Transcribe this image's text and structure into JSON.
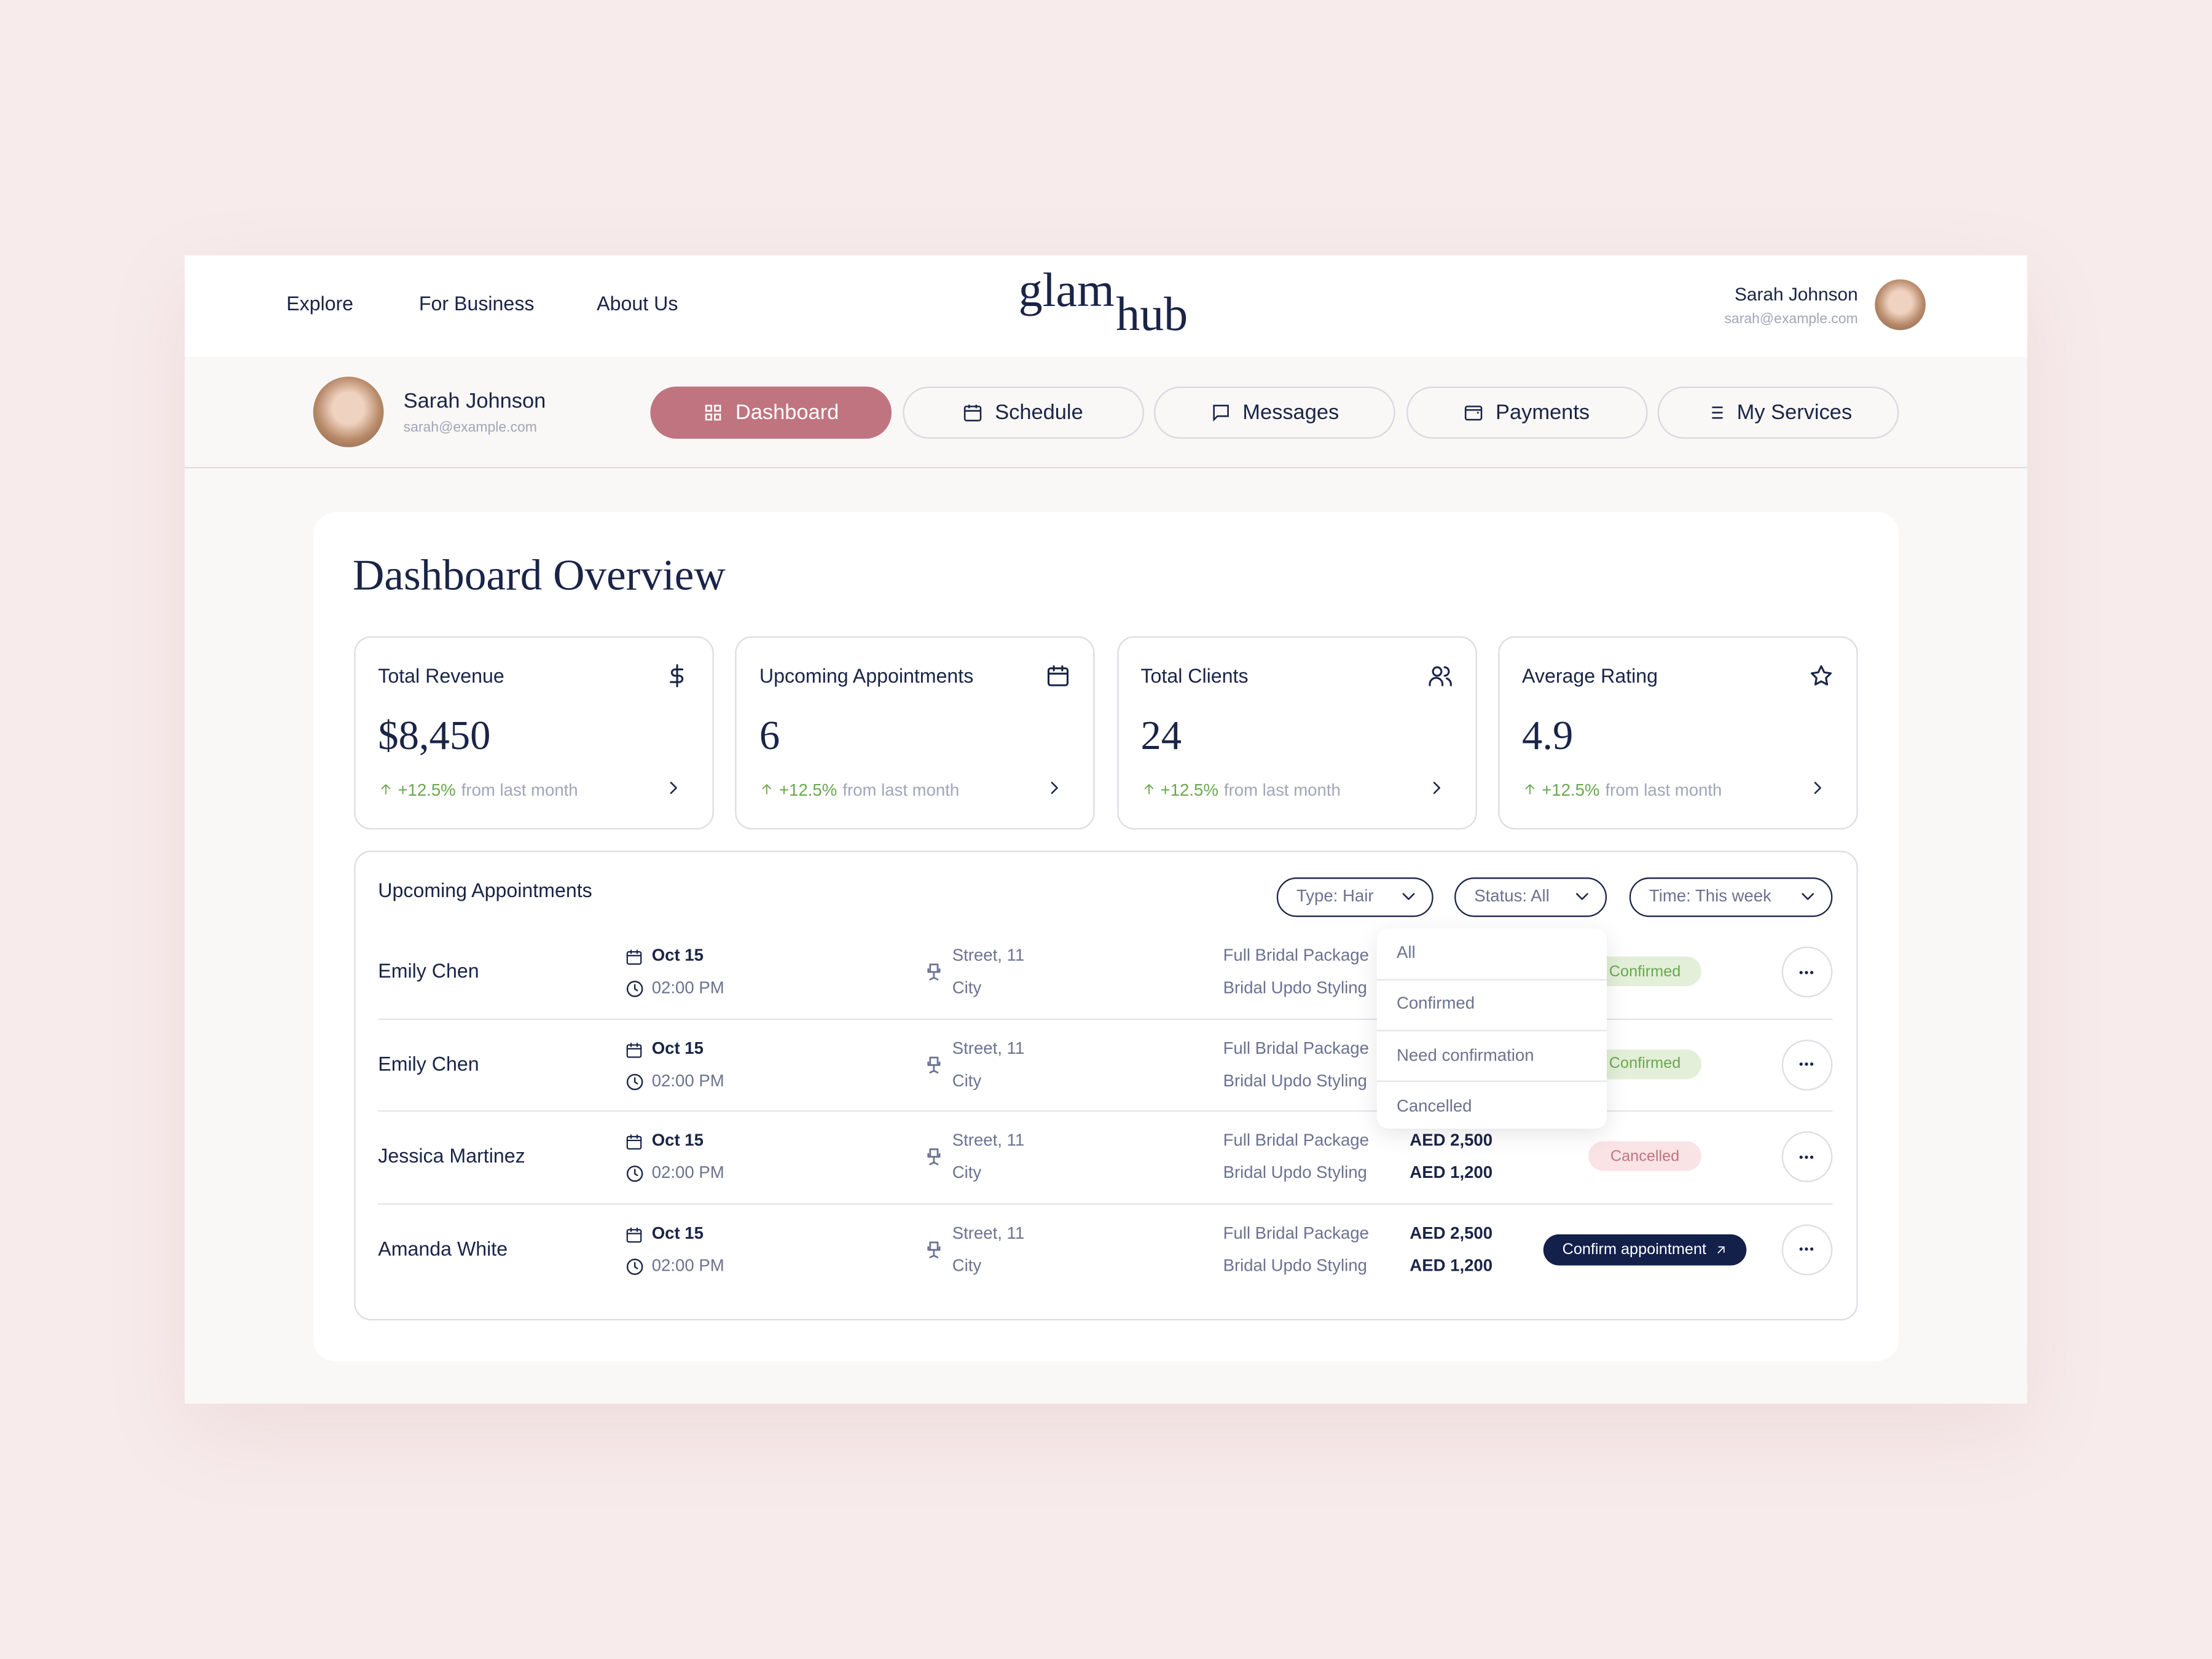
{
  "nav": {
    "links": [
      "Explore",
      "For Business",
      "About Us"
    ],
    "logo": [
      "glam",
      "hub"
    ],
    "user": {
      "name": "Sarah Johnson",
      "email": "sarah@example.com"
    }
  },
  "profile": {
    "name": "Sarah Johnson",
    "email": "sarah@example.com"
  },
  "tabs": {
    "items": [
      "Dashboard",
      "Schedule",
      "Messages",
      "Payments",
      "My Services"
    ],
    "active": 0
  },
  "title": "Dashboard Overview",
  "stats": [
    {
      "label": "Total Revenue",
      "value": "$8,450",
      "change": "+12.5%",
      "note": "from last month"
    },
    {
      "label": "Upcoming Appointments",
      "value": "6",
      "change": "+12.5%",
      "note": "from last month"
    },
    {
      "label": "Total Clients",
      "value": "24",
      "change": "+12.5%",
      "note": "from last month"
    },
    {
      "label": "Average Rating",
      "value": "4.9",
      "change": "+12.5%",
      "note": "from last month"
    }
  ],
  "appointments": {
    "title": "Upcoming Appointments",
    "filters": [
      "Type: Hair",
      "Status: All",
      "Time: This week"
    ],
    "dropdown": [
      "All",
      "Confirmed",
      "Need confirmation",
      "Cancelled"
    ],
    "rows": [
      {
        "name": "Emily Chen",
        "date": "Oct 15",
        "time": "02:00 PM",
        "address": [
          "Street, 11",
          "City"
        ],
        "services": [
          "Full Bridal Package",
          "Bridal Updo Styling"
        ],
        "status": "Confirmed"
      },
      {
        "name": "Emily Chen",
        "date": "Oct 15",
        "time": "02:00 PM",
        "address": [
          "Street, 11",
          "City"
        ],
        "services": [
          "Full Bridal Package",
          "Bridal Updo Styling"
        ],
        "status": "Confirmed"
      },
      {
        "name": "Jessica Martinez",
        "date": "Oct 15",
        "time": "02:00 PM",
        "address": [
          "Street, 11",
          "City"
        ],
        "services": [
          "Full Bridal Package",
          "Bridal Updo Styling"
        ],
        "prices": [
          "AED 2,500",
          "AED 1,200"
        ],
        "status": "Cancelled"
      },
      {
        "name": "Amanda White",
        "date": "Oct 15",
        "time": "02:00 PM",
        "address": [
          "Street, 11",
          "City"
        ],
        "services": [
          "Full Bridal Package",
          "Bridal Updo Styling"
        ],
        "prices": [
          "AED 2,500",
          "AED 1,200"
        ],
        "action": "Confirm appointment"
      }
    ]
  }
}
